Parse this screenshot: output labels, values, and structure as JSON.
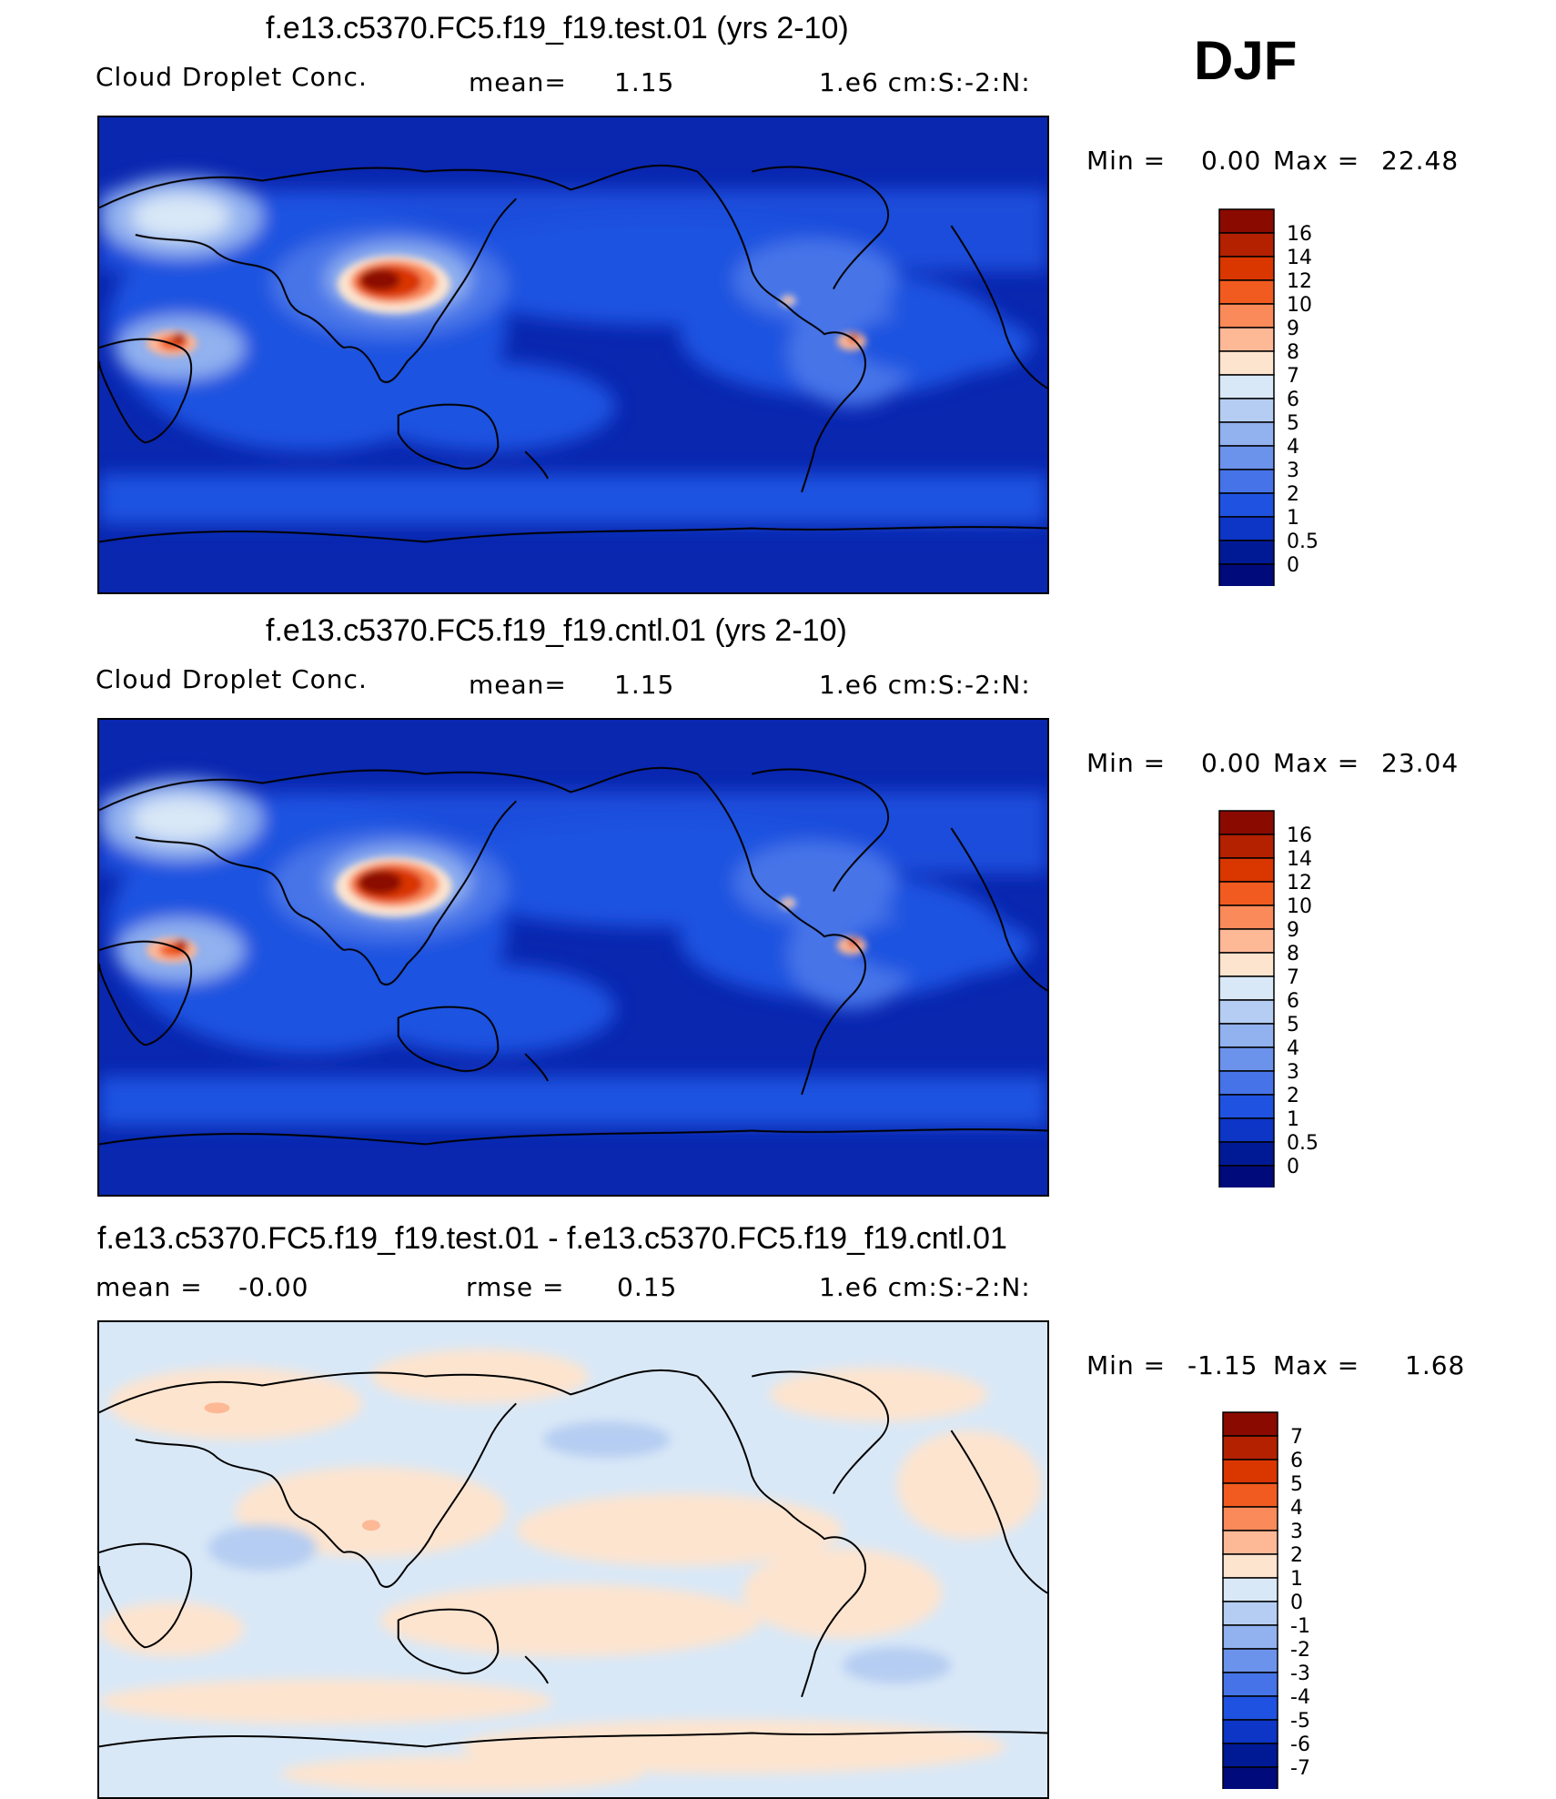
{
  "season": "DJF",
  "panels": [
    {
      "title": "f.e13.c5370.FC5.f19_f19.test.01 (yrs 2-10)",
      "variable": "Cloud Droplet Conc.",
      "mean_label": "mean=",
      "mean_value": "1.15",
      "units": "1.e6 cm:S:-2:N:",
      "min_label": "Min =",
      "min_value": "0.00",
      "max_label": "Max =",
      "max_value": "22.48",
      "colorbar_labels": [
        "16",
        "14",
        "12",
        "10",
        "9",
        "8",
        "7",
        "6",
        "5",
        "4",
        "3",
        "2",
        "1",
        "0.5",
        "0"
      ]
    },
    {
      "title": "f.e13.c5370.FC5.f19_f19.cntl.01 (yrs 2-10)",
      "variable": "Cloud Droplet Conc.",
      "mean_label": "mean=",
      "mean_value": "1.15",
      "units": "1.e6 cm:S:-2:N:",
      "min_label": "Min =",
      "min_value": "0.00",
      "max_label": "Max =",
      "max_value": "23.04",
      "colorbar_labels": [
        "16",
        "14",
        "12",
        "10",
        "9",
        "8",
        "7",
        "6",
        "5",
        "4",
        "3",
        "2",
        "1",
        "0.5",
        "0"
      ]
    },
    {
      "title": "f.e13.c5370.FC5.f19_f19.test.01 - f.e13.c5370.FC5.f19_f19.cntl.01",
      "mean_label": "mean =",
      "mean_value": "-0.00",
      "rmse_label": "rmse =",
      "rmse_value": "0.15",
      "units": "1.e6 cm:S:-2:N:",
      "min_label": "Min =",
      "min_value": "-1.15",
      "max_label": "Max =",
      "max_value": "1.68",
      "colorbar_labels": [
        "7",
        "6",
        "5",
        "4",
        "3",
        "2",
        "1",
        "0",
        "-1",
        "-2",
        "-3",
        "-4",
        "-5",
        "-6",
        "-7"
      ]
    }
  ],
  "colors": {
    "field_scale": [
      "#8b0a00",
      "#b32100",
      "#d93600",
      "#f25b1f",
      "#fb8a5a",
      "#fdb896",
      "#fde4cf",
      "#d9e8f7",
      "#b5cdf2",
      "#91b1ef",
      "#6c93ec",
      "#4674e8",
      "#1f52e0",
      "#0d35c6",
      "#001a96",
      "#000a7a"
    ],
    "diff_scale": [
      "#8b0a00",
      "#b32100",
      "#d93600",
      "#f25b1f",
      "#fb8a5a",
      "#fdb896",
      "#fde4cf",
      "#d9e8f7",
      "#b5cdf2",
      "#91b1ef",
      "#6c93ec",
      "#4674e8",
      "#1f52e0",
      "#0d35c6",
      "#001a96",
      "#000a7a"
    ],
    "ocean_background": "#0a27b0",
    "diff_background": "#d9e8f7"
  }
}
